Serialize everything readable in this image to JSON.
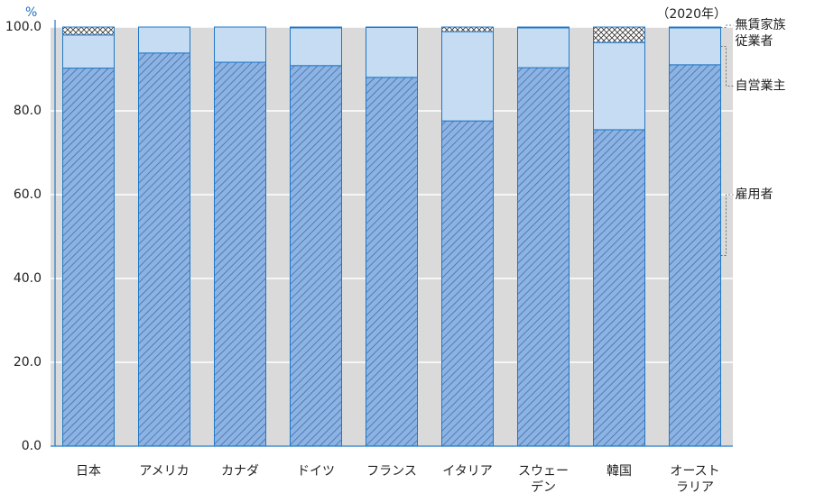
{
  "chart_data": {
    "type": "stacked_bar",
    "annotation": "（2020年）",
    "y_unit": "%",
    "categories": [
      "日本",
      "アメリカ",
      "カナダ",
      "ドイツ",
      "フランス",
      "イタリア",
      "スウェー\nデン",
      "韓国",
      "オースト\nラリア"
    ],
    "series": [
      {
        "name": "雇用者",
        "color": "#8db3e2",
        "pattern": "hatch",
        "values": [
          90.2,
          93.8,
          91.6,
          90.8,
          88.0,
          77.6,
          90.3,
          75.5,
          91.0
        ]
      },
      {
        "name": "自営業主",
        "color": "#c6dcf2",
        "pattern": "solid",
        "values": [
          7.9,
          6.2,
          8.4,
          9.0,
          11.9,
          21.3,
          9.5,
          20.8,
          8.8
        ]
      },
      {
        "name": "無賃家族\n従業者",
        "color": "#ffffff",
        "pattern": "cross",
        "values": [
          1.9,
          0,
          0,
          0.2,
          0.1,
          1.1,
          0.2,
          3.7,
          0.2
        ]
      }
    ],
    "ylim": [
      0,
      100
    ],
    "yticks": [
      {
        "value": 0,
        "label": "0.0"
      },
      {
        "value": 20,
        "label": "20.0"
      },
      {
        "value": 40,
        "label": "40.0"
      },
      {
        "value": 60,
        "label": "60.0"
      },
      {
        "value": 80,
        "label": "80.0"
      },
      {
        "value": 100,
        "label": "100.0"
      }
    ],
    "grid": true
  }
}
